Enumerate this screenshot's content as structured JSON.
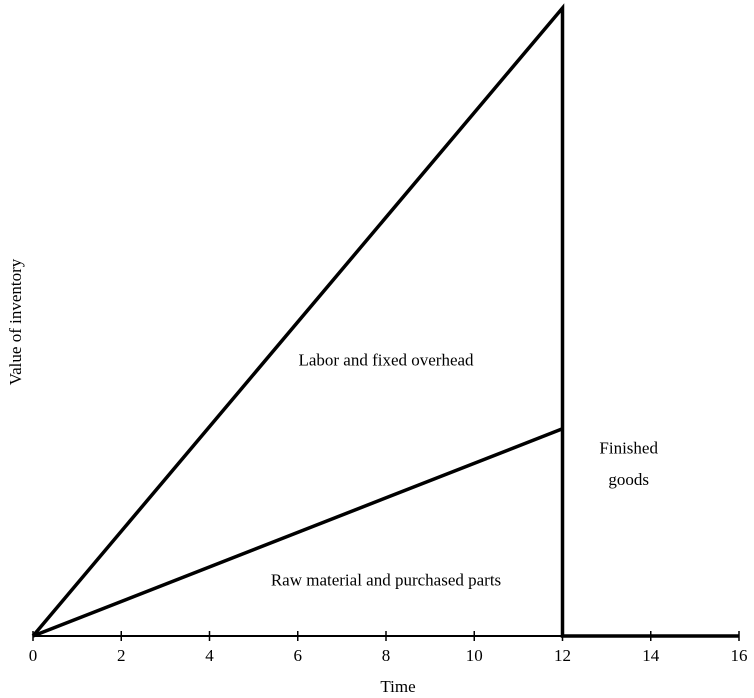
{
  "chart_data": {
    "type": "area",
    "title": "",
    "xlabel": "Time",
    "ylabel": "Value of inventory",
    "xlim": [
      0,
      16
    ],
    "ylim": [
      0,
      100
    ],
    "x_ticks": [
      "0",
      "2",
      "4",
      "6",
      "8",
      "10",
      "12",
      "14",
      "16"
    ],
    "grid": false,
    "series": [
      {
        "x": [
          0,
          12,
          12,
          16
        ],
        "y": [
          0,
          100,
          0,
          0
        ]
      },
      {
        "x": [
          0,
          12
        ],
        "y": [
          0,
          33
        ]
      }
    ],
    "annotations": [
      {
        "text": "Labor and fixed overhead",
        "x": 8,
        "y": 44
      },
      {
        "text": "Raw material and purchased parts",
        "x": 8,
        "y": 9
      },
      {
        "text": "Finished",
        "x": 13.5,
        "y": 30
      },
      {
        "text": "goods",
        "x": 13.5,
        "y": 25
      }
    ]
  }
}
